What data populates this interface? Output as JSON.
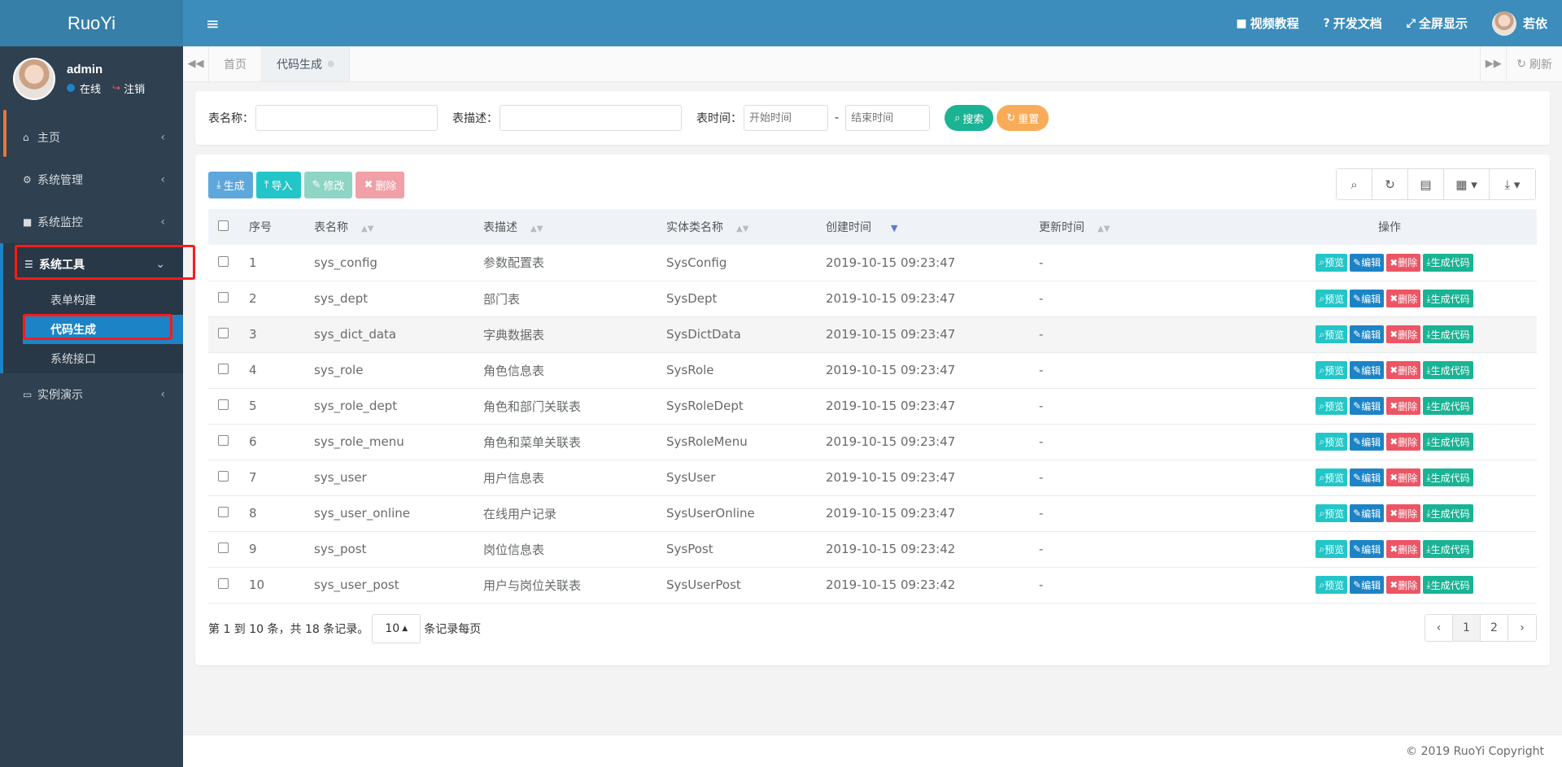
{
  "app": {
    "logo": "RuoYi"
  },
  "user": {
    "name": "admin",
    "status": "在线",
    "logout": "注销",
    "display_name": "若依"
  },
  "sidebar": {
    "items": [
      {
        "label": "主页",
        "icon": "home-icon"
      },
      {
        "label": "系统管理",
        "icon": "gear-icon"
      },
      {
        "label": "系统监控",
        "icon": "video-icon"
      },
      {
        "label": "系统工具",
        "icon": "bars-icon"
      },
      {
        "label": "实例演示",
        "icon": "desktop-icon"
      }
    ],
    "submenu": [
      "表单构建",
      "代码生成",
      "系统接口"
    ]
  },
  "header": {
    "links": [
      "视频教程",
      "开发文档",
      "全屏显示"
    ]
  },
  "tabs": {
    "items": [
      "首页",
      "代码生成"
    ],
    "refresh": "刷新"
  },
  "search": {
    "table_name_label": "表名称：",
    "table_desc_label": "表描述：",
    "time_label": "表时间：",
    "start_placeholder": "开始时间",
    "end_placeholder": "结束时间",
    "range_sep": "-",
    "search_btn": "搜索",
    "reset_btn": "重置"
  },
  "toolbar": {
    "generate": "生成",
    "import": "导入",
    "edit": "修改",
    "delete": "删除"
  },
  "table": {
    "headers": [
      "序号",
      "表名称",
      "表描述",
      "实体类名称",
      "创建时间",
      "更新时间",
      "操作"
    ],
    "ops": [
      "预览",
      "编辑",
      "删除",
      "生成代码"
    ],
    "rows": [
      {
        "no": "1",
        "name": "sys_config",
        "desc": "参数配置表",
        "cls": "SysConfig",
        "created": "2019-10-15 09:23:47",
        "updated": "-"
      },
      {
        "no": "2",
        "name": "sys_dept",
        "desc": "部门表",
        "cls": "SysDept",
        "created": "2019-10-15 09:23:47",
        "updated": "-"
      },
      {
        "no": "3",
        "name": "sys_dict_data",
        "desc": "字典数据表",
        "cls": "SysDictData",
        "created": "2019-10-15 09:23:47",
        "updated": "-"
      },
      {
        "no": "4",
        "name": "sys_role",
        "desc": "角色信息表",
        "cls": "SysRole",
        "created": "2019-10-15 09:23:47",
        "updated": "-"
      },
      {
        "no": "5",
        "name": "sys_role_dept",
        "desc": "角色和部门关联表",
        "cls": "SysRoleDept",
        "created": "2019-10-15 09:23:47",
        "updated": "-"
      },
      {
        "no": "6",
        "name": "sys_role_menu",
        "desc": "角色和菜单关联表",
        "cls": "SysRoleMenu",
        "created": "2019-10-15 09:23:47",
        "updated": "-"
      },
      {
        "no": "7",
        "name": "sys_user",
        "desc": "用户信息表",
        "cls": "SysUser",
        "created": "2019-10-15 09:23:47",
        "updated": "-"
      },
      {
        "no": "8",
        "name": "sys_user_online",
        "desc": "在线用户记录",
        "cls": "SysUserOnline",
        "created": "2019-10-15 09:23:47",
        "updated": "-"
      },
      {
        "no": "9",
        "name": "sys_post",
        "desc": "岗位信息表",
        "cls": "SysPost",
        "created": "2019-10-15 09:23:42",
        "updated": "-"
      },
      {
        "no": "10",
        "name": "sys_user_post",
        "desc": "用户与岗位关联表",
        "cls": "SysUserPost",
        "created": "2019-10-15 09:23:42",
        "updated": "-"
      }
    ]
  },
  "pagination": {
    "info_prefix": "第 1 到 10 条，共 18 条记录。",
    "page_size": "10",
    "per_page_suffix": "条记录每页",
    "pages": [
      "‹",
      "1",
      "2",
      "›"
    ]
  },
  "footer": {
    "copyright": "© 2019 RuoYi Copyright"
  }
}
